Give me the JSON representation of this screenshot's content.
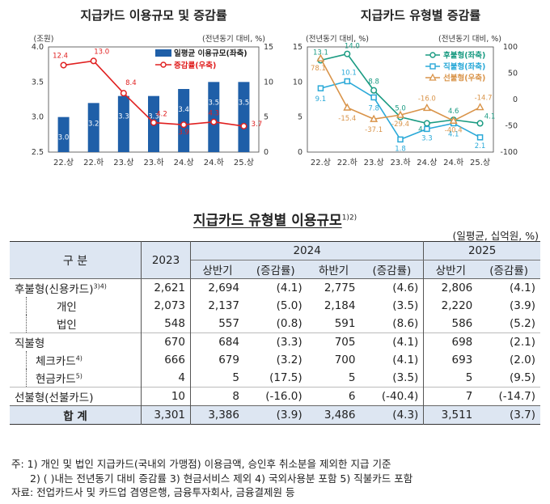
{
  "chart_data": [
    {
      "type": "bar",
      "title": "지급카드 이용규모 및 증감률",
      "categories": [
        "22.상",
        "22.하",
        "23.상",
        "23.하",
        "24.상",
        "24.하",
        "25.상"
      ],
      "ylabel_left": "(조원)",
      "ylabel_right": "(전년동기 대비, %)",
      "ylim_left": [
        2.5,
        4.0
      ],
      "yticks_left": [
        "2.5",
        "3.0",
        "3.5",
        "4.0"
      ],
      "ylim_right": [
        0,
        15
      ],
      "yticks_right": [
        "0",
        "5",
        "10",
        "15"
      ],
      "series": [
        {
          "name": "일평균 이용규모(좌축)",
          "kind": "bar",
          "axis": "left",
          "color": "#1f5fa8",
          "values": [
            3.0,
            3.2,
            3.3,
            3.3,
            3.4,
            3.5,
            3.5
          ],
          "labels": [
            "3.0",
            "3.2",
            "3.3",
            "3.3",
            "3.4",
            "3.5",
            "3.5"
          ]
        },
        {
          "name": "증감률(우축)",
          "kind": "line",
          "axis": "right",
          "color": "#e02020",
          "values": [
            12.4,
            13.0,
            8.4,
            4.2,
            3.9,
            4.3,
            3.7
          ],
          "labels": [
            "12.4",
            "13.0",
            "8.4",
            "4.2",
            "3.9",
            "4.3",
            "3.7"
          ]
        }
      ]
    },
    {
      "type": "line",
      "title": "지급카드 유형별 증감률",
      "categories": [
        "22.상",
        "22.하",
        "23.상",
        "23.하",
        "24.상",
        "24.하",
        "25.상"
      ],
      "ylabel_left": "(전년동기 대비, %)",
      "ylabel_right": "(전년동기 대비, %)",
      "ylim_left": [
        0,
        15
      ],
      "yticks_left": [
        "0",
        "5",
        "10",
        "15"
      ],
      "ylim_right": [
        -100,
        100
      ],
      "yticks_right": [
        "-100",
        "-50",
        "0",
        "50",
        "100"
      ],
      "series": [
        {
          "name": "후불형(좌축)",
          "axis": "left",
          "color": "#1a9b82",
          "values": [
            13.1,
            14.0,
            8.8,
            5.0,
            4.1,
            4.6,
            4.1
          ],
          "labels": [
            "13.1",
            "14.0",
            "8.8",
            "5.0",
            "4.1",
            "4.6",
            "4.1"
          ]
        },
        {
          "name": "직불형(좌축)",
          "axis": "left",
          "color": "#2aa9d8",
          "values": [
            9.1,
            10.1,
            7.8,
            1.8,
            3.3,
            4.1,
            2.1
          ],
          "labels": [
            "9.1",
            "10.1",
            "7.8",
            "1.8",
            "3.3",
            "4.1",
            "2.1"
          ]
        },
        {
          "name": "선불형(우축)",
          "axis": "right",
          "color": "#d9944a",
          "values": [
            78.1,
            -15.4,
            -37.1,
            -29.4,
            -16.0,
            -40.4,
            -14.7
          ],
          "labels": [
            "78.1",
            "-15.4",
            "-37.1",
            "-29.4",
            "-16.0",
            "-40.4",
            "-14.7"
          ]
        }
      ]
    }
  ],
  "table": {
    "title": "지급카드 유형별 이용규모",
    "title_sup": "1)2)",
    "unit": "(일평균, 십억원, %)",
    "header": {
      "col_label": "구  분",
      "y2023": "2023",
      "y2024": "2024",
      "y2025": "2025",
      "h1": "상반기",
      "h2": "하반기",
      "chg": "(증감률)"
    },
    "rows": [
      {
        "label": "후불형(신용카드)",
        "sup": "3)4)",
        "level": 0,
        "v": [
          "2,621",
          "2,694",
          "(4.1)",
          "2,775",
          "(4.6)",
          "2,806",
          "(4.1)"
        ]
      },
      {
        "label": "개인",
        "sup": "",
        "level": 2,
        "v": [
          "2,073",
          "2,137",
          "(5.0)",
          "2,184",
          "(3.5)",
          "2,220",
          "(3.9)"
        ]
      },
      {
        "label": "법인",
        "sup": "",
        "level": 2,
        "v": [
          "548",
          "557",
          "(0.8)",
          "591",
          "(8.6)",
          "586",
          "(5.2)"
        ]
      },
      {
        "label": "직불형",
        "sup": "",
        "level": 0,
        "v": [
          "670",
          "684",
          "(3.3)",
          "705",
          "(4.1)",
          "698",
          "(2.1)"
        ]
      },
      {
        "label": "체크카드",
        "sup": "4)",
        "level": 1,
        "v": [
          "666",
          "679",
          "(3.2)",
          "700",
          "(4.1)",
          "693",
          "(2.0)"
        ]
      },
      {
        "label": "현금카드",
        "sup": "5)",
        "level": 1,
        "v": [
          "4",
          "5",
          "(17.5)",
          "5",
          "(3.5)",
          "5",
          "(9.5)"
        ]
      },
      {
        "label": "선불형(선불카드)",
        "sup": "",
        "level": 0,
        "v": [
          "10",
          "8",
          "(-16.0)",
          "6",
          "(-40.4)",
          "7",
          "(-14.7)"
        ]
      },
      {
        "label": "합    계",
        "sup": "",
        "level": 0,
        "total": true,
        "v": [
          "3,301",
          "3,386",
          "(3.9)",
          "3,486",
          "(4.3)",
          "3,511",
          "(3.7)"
        ]
      }
    ]
  },
  "notes": [
    "주: 1) 개인 및 법인 지급카드(국내외 가맹점) 이용금액, 승인후 취소분을 제외한 지급 기준",
    "2) ( )내는 전년동기 대비 증감률    3) 현금서비스 제외    4) 국외사용분 포함    5) 직불카드 포함",
    "자료: 전업카드사 및 카드업 겸영은행, 금융투자회사, 금융결제원 등"
  ]
}
